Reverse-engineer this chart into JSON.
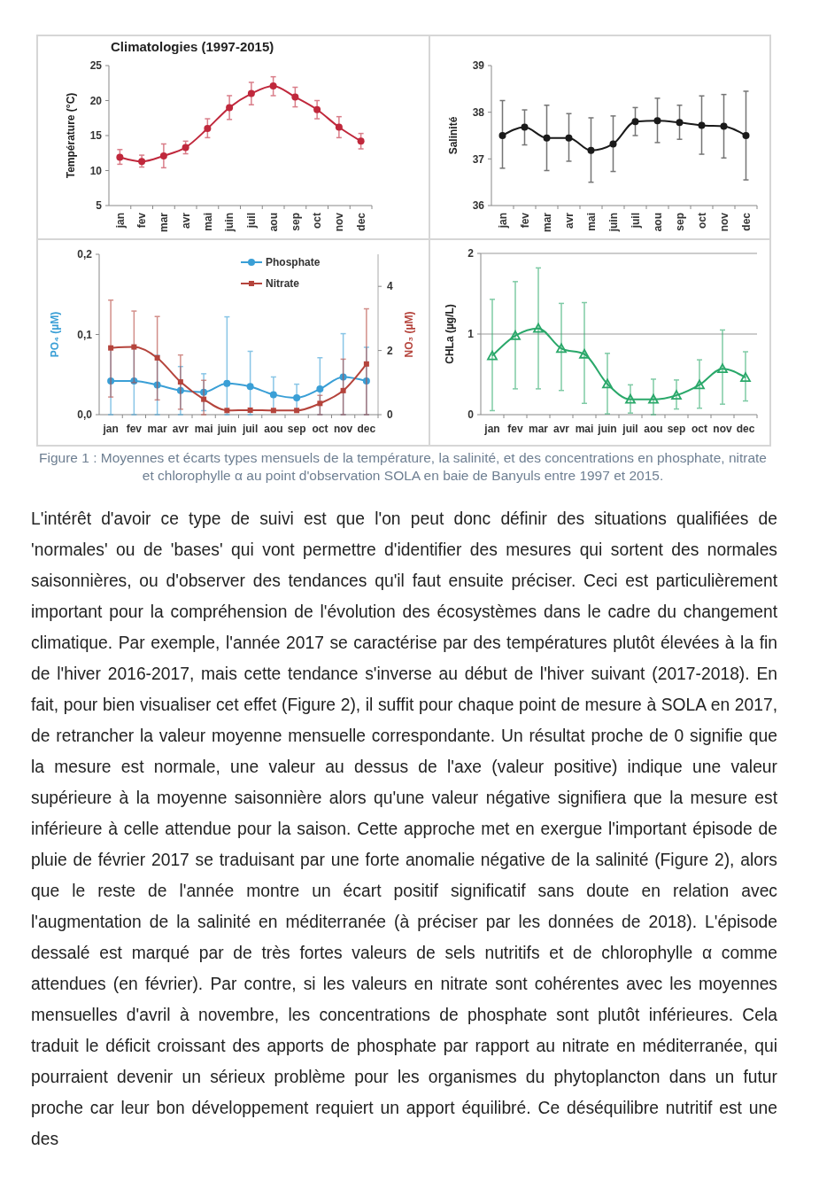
{
  "chart_data": [
    {
      "type": "line",
      "title": "Climatologies (1997-2015)",
      "ylabel": "Température (°C)",
      "categories": [
        "jan",
        "fev",
        "mar",
        "avr",
        "mai",
        "juin",
        "juil",
        "aou",
        "sep",
        "oct",
        "nov",
        "dec"
      ],
      "marker": "circle",
      "ylim": [
        5,
        25
      ],
      "yticks": [
        5,
        10,
        15,
        20,
        25
      ],
      "series": [
        {
          "color": "#c0283c",
          "values": [
            11.9,
            11.3,
            12.1,
            13.3,
            16.0,
            19.0,
            21.0,
            22.1,
            20.5,
            18.7,
            16.2,
            14.2
          ],
          "errors": [
            [
              10.9,
              13.0
            ],
            [
              10.5,
              12.2
            ],
            [
              10.4,
              13.8
            ],
            [
              12.4,
              14.2
            ],
            [
              14.7,
              17.4
            ],
            [
              17.3,
              20.7
            ],
            [
              19.4,
              22.6
            ],
            [
              20.7,
              23.4
            ],
            [
              19.1,
              21.9
            ],
            [
              17.4,
              20.0
            ],
            [
              14.7,
              17.7
            ],
            [
              13.1,
              15.3
            ]
          ]
        }
      ]
    },
    {
      "type": "line",
      "ylabel": "Salinité",
      "categories": [
        "jan",
        "fev",
        "mar",
        "avr",
        "mai",
        "juin",
        "juil",
        "aou",
        "sep",
        "oct",
        "nov",
        "dec"
      ],
      "marker": "circle",
      "ylim": [
        36,
        39
      ],
      "yticks": [
        36,
        37,
        38,
        39
      ],
      "series": [
        {
          "color": "#1a1a1a",
          "values": [
            37.5,
            37.68,
            37.45,
            37.45,
            37.18,
            37.32,
            37.8,
            37.82,
            37.78,
            37.72,
            37.7,
            37.5
          ],
          "errors": [
            [
              36.8,
              38.25
            ],
            [
              37.3,
              38.05
            ],
            [
              36.75,
              38.15
            ],
            [
              36.95,
              37.97
            ],
            [
              36.5,
              37.88
            ],
            [
              36.73,
              37.92
            ],
            [
              37.5,
              38.1
            ],
            [
              37.35,
              38.3
            ],
            [
              37.42,
              38.15
            ],
            [
              37.1,
              38.35
            ],
            [
              37.02,
              38.38
            ],
            [
              36.55,
              38.45
            ]
          ]
        }
      ]
    },
    {
      "type": "line",
      "ylabel": "PO₄ (µM)",
      "y2label": "NO₃ (µM)",
      "categories": [
        "jan",
        "fev",
        "mar",
        "avr",
        "mai",
        "juin",
        "juil",
        "aou",
        "sep",
        "oct",
        "nov",
        "dec"
      ],
      "ylim": [
        0,
        0.2
      ],
      "yticks": [
        {
          "value": 0,
          "label": "0,0"
        },
        {
          "value": 0.1,
          "label": "0,1"
        },
        {
          "value": 0.2,
          "label": "0,2"
        }
      ],
      "y2lim": [
        0,
        5
      ],
      "y2ticks": [
        0,
        2,
        4
      ],
      "legend": "top",
      "series": [
        {
          "name": "Phosphate",
          "color": "#3a9fd6",
          "marker": "circle",
          "values": [
            0.042,
            0.042,
            0.037,
            0.03,
            0.028,
            0.039,
            0.035,
            0.025,
            0.021,
            0.032,
            0.047,
            0.042
          ],
          "errors": [
            [
              0,
              0.084
            ],
            [
              0,
              0.084
            ],
            [
              0,
              0.074
            ],
            [
              0,
              0.06
            ],
            [
              0.005,
              0.051
            ],
            [
              0,
              0.122
            ],
            [
              0,
              0.079
            ],
            [
              0.003,
              0.047
            ],
            [
              0.004,
              0.038
            ],
            [
              0,
              0.071
            ],
            [
              0,
              0.101
            ],
            [
              0,
              0.084
            ]
          ]
        },
        {
          "name": "Nitrate",
          "color": "#b5443c",
          "marker": "square",
          "axis": "y2",
          "values": [
            2.08,
            2.11,
            1.77,
            1.02,
            0.48,
            0.13,
            0.14,
            0.13,
            0.13,
            0.35,
            0.75,
            1.58
          ],
          "errors": [
            [
              0.55,
              3.57
            ],
            [
              1.0,
              3.23
            ],
            [
              0.46,
              3.06
            ],
            [
              0.17,
              1.86
            ],
            [
              0,
              1.07
            ],
            null,
            null,
            null,
            null,
            [
              0,
              0.6
            ],
            [
              0,
              1.73
            ],
            [
              0,
              3.3
            ]
          ]
        }
      ]
    },
    {
      "type": "line",
      "ylabel": "CHLa (µg/L)",
      "categories": [
        "jan",
        "fev",
        "mar",
        "avr",
        "mai",
        "juin",
        "juil",
        "aou",
        "sep",
        "oct",
        "nov",
        "dec"
      ],
      "marker": "triangle",
      "ylim": [
        0,
        2
      ],
      "yticks": [
        0,
        1,
        2
      ],
      "ref_lines": [
        {
          "axis": "y",
          "value": 1,
          "color": "#9a9a9a"
        },
        {
          "axis": "y",
          "value": 2,
          "color": "#9a9a9a"
        }
      ],
      "series": [
        {
          "color": "#2aa86a",
          "values": [
            0.73,
            0.98,
            1.07,
            0.82,
            0.75,
            0.38,
            0.19,
            0.19,
            0.24,
            0.37,
            0.57,
            0.46
          ],
          "errors": [
            [
              0.05,
              1.43
            ],
            [
              0.32,
              1.65
            ],
            [
              0.32,
              1.82
            ],
            [
              0.3,
              1.38
            ],
            [
              0.14,
              1.39
            ],
            [
              0.01,
              0.76
            ],
            [
              0.02,
              0.37
            ],
            [
              0,
              0.44
            ],
            [
              0.07,
              0.43
            ],
            [
              0.08,
              0.68
            ],
            [
              0.13,
              1.05
            ],
            [
              0.17,
              0.78
            ]
          ]
        }
      ]
    },
    {
      "type": "other",
      "annotations": [
        "Figure 1 : Moyennes et écarts types mensuels de la température, la salinité, et des concentrations en phosphate, nitrate et chlorophylle α au point d'observation SOLA en baie de Banyuls entre 1997 et 2015.",
        "L'intérêt d'avoir ce type de suivi est que l'on peut donc définir des situations qualifiées de 'normales' ou de 'bases' qui vont permettre d'identifier des mesures qui sortent des normales saisonnières, ou d'observer des tendances qu'il faut ensuite préciser. Ceci est particulièrement important pour la compréhension de l'évolution des écosystèmes dans le cadre du changement climatique. Par exemple, l'année 2017 se caractérise par des températures plutôt élevées à la fin de l'hiver 2016-2017, mais cette tendance s'inverse au début de l'hiver suivant (2017-2018). En fait, pour bien visualiser cet effet (Figure 2), il suffit pour chaque point de mesure à SOLA en 2017, de retrancher la valeur moyenne mensuelle correspondante. Un résultat proche de 0 signifie que la mesure est normale, une valeur au dessus de l'axe (valeur positive) indique une valeur supérieure à la moyenne saisonnière alors qu'une valeur négative signifiera que la mesure est inférieure à celle attendue pour la saison. Cette approche met en exergue l'important épisode de pluie de février 2017 se traduisant par une forte anomalie négative de la salinité (Figure 2), alors que le reste de l'année montre un écart positif significatif sans doute en relation avec l'augmentation de la salinité en méditerranée (à préciser par les données de 2018). L'épisode dessalé est marqué par de très fortes valeurs de sels nutritifs et de chlorophylle α comme attendues (en février). Par contre, si les valeurs en nitrate sont cohérentes avec les moyennes mensuelles d'avril à novembre, les concentrations de phosphate sont plutôt inférieures. Cela traduit le déficit croissant des apports de phosphate par rapport au nitrate en méditerranée, qui pourraient devenir un sérieux problème pour les organismes du phytoplancton dans un futur proche car leur bon développement requiert un apport équilibré. Ce déséquilibre nutritif est une des"
      ]
    }
  ]
}
